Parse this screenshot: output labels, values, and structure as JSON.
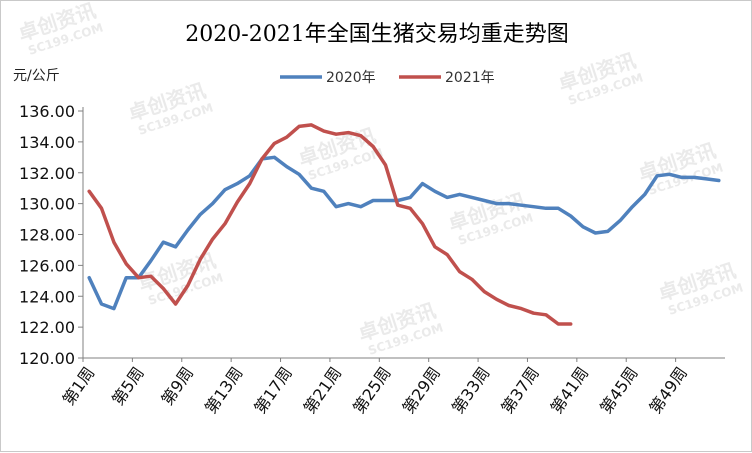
{
  "chart_data": {
    "type": "line",
    "title": "2020-2021年全国生猪交易均重走势图",
    "ylabel": "元/公斤",
    "ylim": [
      120,
      136
    ],
    "yticks": [
      "120.00",
      "122.00",
      "124.00",
      "126.00",
      "128.00",
      "130.00",
      "132.00",
      "134.00",
      "136.00"
    ],
    "x_tick_labels": [
      "第1周",
      "第5周",
      "第9周",
      "第13周",
      "第17周",
      "第21周",
      "第25周",
      "第29周",
      "第33周",
      "第37周",
      "第41周",
      "第45周",
      "第49周"
    ],
    "legend_position": "top",
    "grid": false,
    "series": [
      {
        "name": "2020年",
        "color": "#4f81bd",
        "x": [
          1,
          2,
          3,
          4,
          5,
          6,
          7,
          8,
          9,
          10,
          11,
          12,
          13,
          14,
          15,
          16,
          17,
          18,
          19,
          20,
          21,
          22,
          23,
          24,
          25,
          26,
          27,
          28,
          29,
          30,
          31,
          32,
          33,
          34,
          35,
          36,
          37,
          38,
          39,
          40,
          41,
          42,
          43,
          44,
          45,
          46,
          47,
          48,
          49,
          50,
          51,
          52
        ],
        "values": [
          125.2,
          123.5,
          123.2,
          125.2,
          125.2,
          126.3,
          127.5,
          127.2,
          128.3,
          129.3,
          130.0,
          130.9,
          131.3,
          131.8,
          132.9,
          133.0,
          132.4,
          131.9,
          131.0,
          130.8,
          129.8,
          130.0,
          129.8,
          130.2,
          130.2,
          130.2,
          130.4,
          131.3,
          130.8,
          130.4,
          130.6,
          130.4,
          130.2,
          130.0,
          130.0,
          129.9,
          129.8,
          129.7,
          129.7,
          129.2,
          128.5,
          128.1,
          128.2,
          128.9,
          129.8,
          130.6,
          131.8,
          131.9,
          131.7,
          131.7,
          131.6,
          131.5
        ]
      },
      {
        "name": "2021年",
        "color": "#c0504d",
        "x": [
          1,
          2,
          3,
          4,
          5,
          6,
          7,
          8,
          9,
          10,
          11,
          12,
          13,
          14,
          15,
          16,
          17,
          18,
          19,
          20,
          21,
          22,
          23,
          24,
          25,
          26,
          27,
          28,
          29,
          30,
          31,
          32,
          33,
          34,
          35,
          36,
          37,
          38,
          39,
          40
        ],
        "values": [
          130.8,
          129.7,
          127.5,
          126.1,
          125.2,
          125.3,
          124.5,
          123.5,
          124.7,
          126.4,
          127.7,
          128.7,
          130.1,
          131.3,
          132.9,
          133.9,
          134.3,
          135.0,
          135.1,
          134.7,
          134.5,
          134.6,
          134.4,
          133.7,
          132.5,
          129.9,
          129.7,
          128.7,
          127.2,
          126.7,
          125.6,
          125.1,
          124.3,
          123.8,
          123.4,
          123.2,
          122.9,
          122.8,
          122.2,
          122.2
        ]
      }
    ],
    "watermarks": [
      "卓创资讯",
      "SC199.COM"
    ]
  }
}
